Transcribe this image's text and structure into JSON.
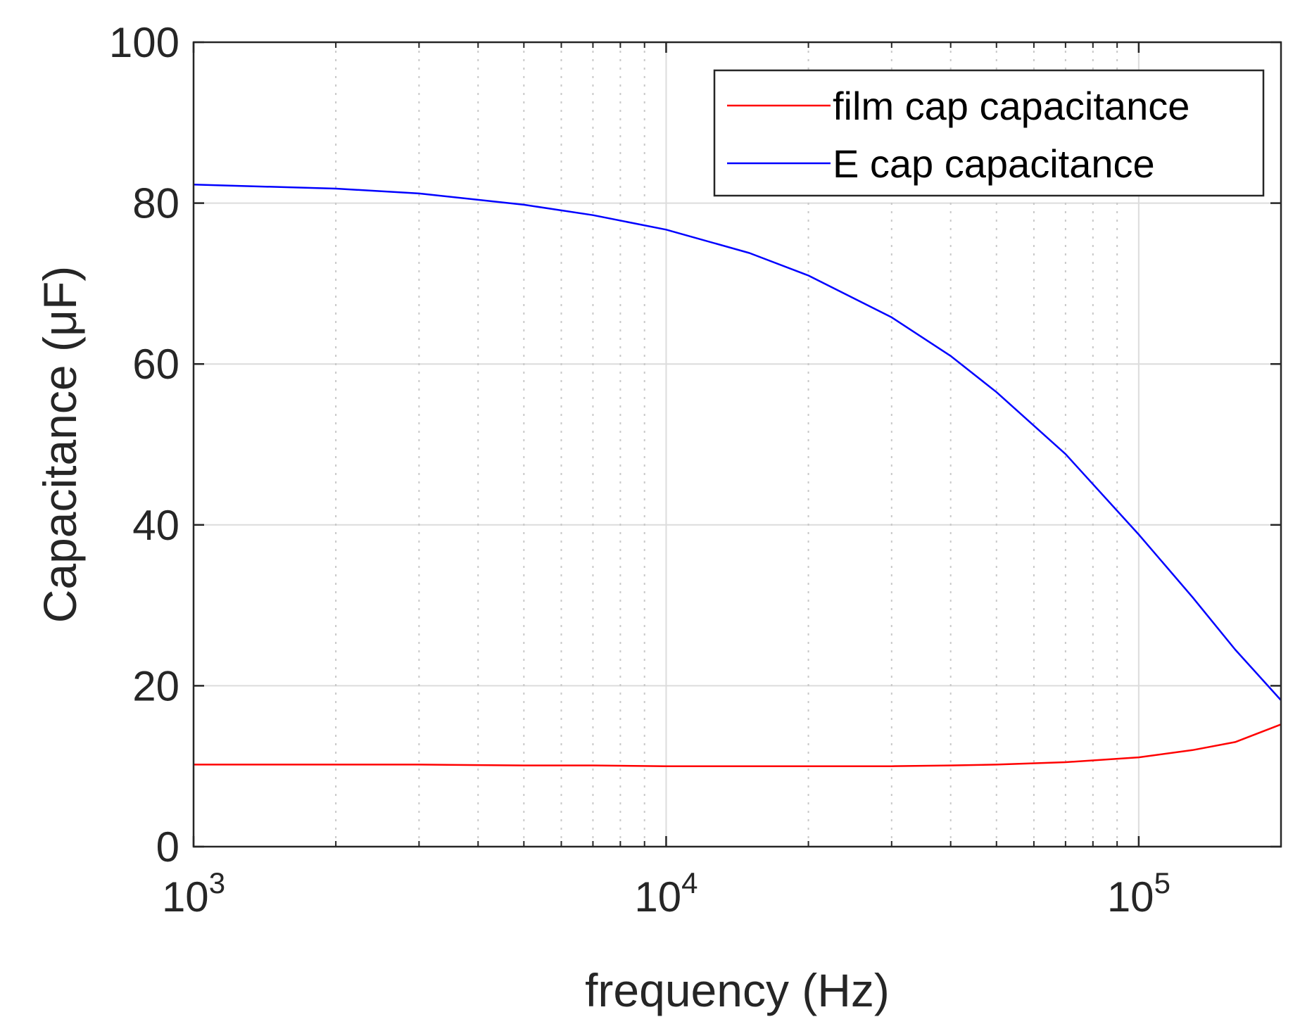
{
  "chart_data": {
    "type": "line",
    "title": "",
    "xlabel": "frequency (Hz)",
    "ylabel": "Capacitance (μF)",
    "xscale": "log",
    "xlim": [
      1000,
      200000
    ],
    "ylim": [
      0,
      100
    ],
    "grid": true,
    "legend_position": "top-right",
    "x_ticks": [
      {
        "value": 1000,
        "base": "10",
        "exp": "3"
      },
      {
        "value": 10000,
        "base": "10",
        "exp": "4"
      },
      {
        "value": 100000,
        "base": "10",
        "exp": "5"
      }
    ],
    "y_ticks": [
      0,
      20,
      40,
      60,
      80,
      100
    ],
    "x": [
      1000,
      2000,
      3000,
      5000,
      7000,
      10000,
      15000,
      20000,
      30000,
      40000,
      50000,
      70000,
      100000,
      130000,
      160000,
      200000
    ],
    "series": [
      {
        "name": "film cap capacitance",
        "color": "#ff0000",
        "values": [
          10.2,
          10.2,
          10.2,
          10.1,
          10.1,
          10.0,
          10.0,
          10.0,
          10.0,
          10.1,
          10.2,
          10.5,
          11.1,
          12.0,
          13.0,
          15.2
        ]
      },
      {
        "name": "E cap capacitance",
        "color": "#0000ff",
        "values": [
          82.3,
          81.8,
          81.2,
          79.8,
          78.5,
          76.7,
          73.8,
          71.0,
          65.8,
          61.0,
          56.5,
          48.8,
          38.8,
          31.0,
          24.5,
          18.2
        ]
      }
    ]
  }
}
